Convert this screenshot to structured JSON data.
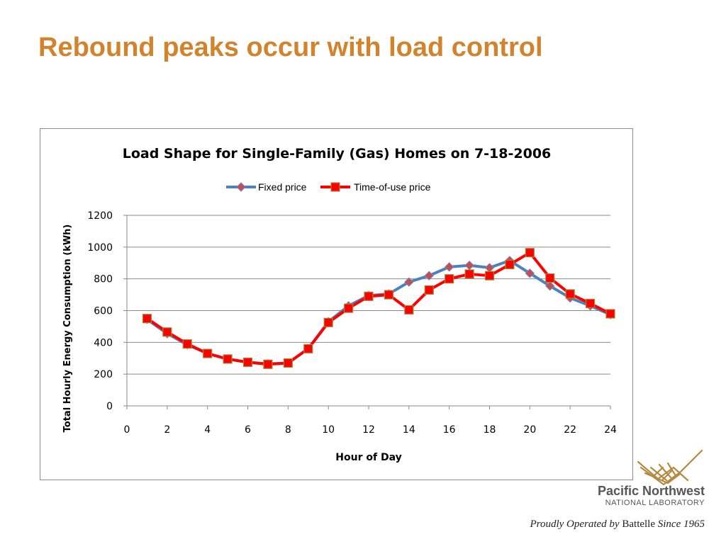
{
  "slide": {
    "title": "Rebound peaks occur with load control"
  },
  "branding": {
    "org_name": "Pacific Northwest",
    "org_sub": "NATIONAL LABORATORY",
    "tagline_pre": "Proudly Operated by ",
    "tagline_brand": "Battelle",
    "tagline_post": " Since 1965",
    "logo_color": "#b5893f"
  },
  "chart_data": {
    "type": "line",
    "title": "Load Shape for Single-Family (Gas) Homes on 7-18-2006",
    "xlabel": "Hour of Day",
    "ylabel": "Total Hourly Energy Consumption (kWh)",
    "xlim": [
      0,
      24
    ],
    "ylim": [
      0,
      1200
    ],
    "xticks": [
      0,
      2,
      4,
      6,
      8,
      10,
      12,
      14,
      16,
      18,
      20,
      22,
      24
    ],
    "yticks": [
      0,
      200,
      400,
      600,
      800,
      1000,
      1200
    ],
    "grid": "horizontal",
    "legend_position": "top",
    "x": [
      1,
      2,
      3,
      4,
      5,
      6,
      7,
      8,
      9,
      10,
      11,
      12,
      13,
      14,
      15,
      16,
      17,
      18,
      19,
      20,
      21,
      22,
      23,
      24
    ],
    "series": [
      {
        "name": "Fixed price",
        "color": "#4f81bd",
        "marker": "diamond",
        "marker_color": "#c0504d",
        "values": [
          545,
          455,
          385,
          330,
          295,
          275,
          265,
          270,
          360,
          530,
          630,
          695,
          705,
          780,
          820,
          875,
          885,
          870,
          915,
          835,
          755,
          680,
          630,
          575
        ]
      },
      {
        "name": "Time-of-use price",
        "color": "#ff0000",
        "marker": "square",
        "marker_color": "#ff0000",
        "values": [
          550,
          465,
          390,
          330,
          295,
          275,
          262,
          270,
          360,
          525,
          615,
          690,
          700,
          605,
          730,
          800,
          830,
          820,
          890,
          965,
          805,
          705,
          645,
          580
        ]
      }
    ]
  }
}
